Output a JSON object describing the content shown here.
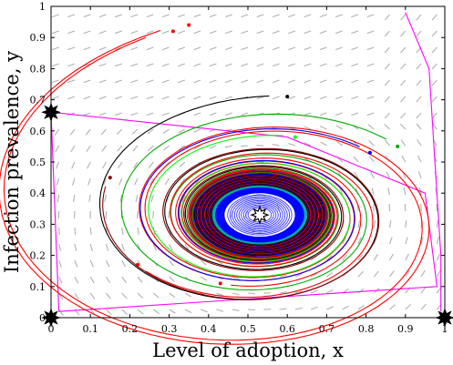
{
  "chart_data": {
    "type": "line",
    "subtype": "phase-portrait",
    "xlabel": "Level of adoption, x",
    "ylabel": "Infection prevalence, y",
    "xlim": [
      0,
      1
    ],
    "ylim": [
      0,
      1
    ],
    "xticks": [
      "0",
      "0.1",
      "0.2",
      "0.3",
      "0.4",
      "0.5",
      "0.6",
      "0.7",
      "0.8",
      "0.9",
      "1"
    ],
    "yticks": [
      "0",
      "0.1",
      "0.2",
      "0.3",
      "0.4",
      "0.5",
      "0.6",
      "0.7",
      "0.8",
      "0.9",
      "1"
    ],
    "grid": false,
    "legend": "none",
    "vector_field": {
      "color": "#b0b0b0",
      "rows": 19,
      "cols": 25
    },
    "equilibria": [
      {
        "x": 0.0,
        "y": 0.0,
        "style": "filled"
      },
      {
        "x": 1.0,
        "y": 0.0,
        "style": "filled"
      },
      {
        "x": 0.0,
        "y": 0.66,
        "style": "filled"
      },
      {
        "x": 0.53,
        "y": 0.33,
        "style": "hollow"
      }
    ],
    "limit_cycle": {
      "center": [
        0.53,
        0.33
      ],
      "rx": 0.165,
      "ry": 0.13,
      "tilt": 0.12
    },
    "series": [
      {
        "color": "#ff00ff",
        "points": [
          [
            0.9,
            0.98
          ],
          [
            0.96,
            0.8
          ],
          [
            0.99,
            0.2
          ],
          [
            0.99,
            0.02
          ]
        ]
      },
      {
        "color": "#ff00ff",
        "points": [
          [
            0.0,
            0.66
          ],
          [
            0.6,
            0.58
          ],
          [
            0.95,
            0.4
          ],
          [
            0.98,
            0.1
          ],
          [
            0.02,
            0.02
          ],
          [
            0.0,
            0.66
          ]
        ]
      },
      {
        "color": "#ff0000",
        "start": [
          0.35,
          0.94
        ],
        "r0": 0.54,
        "turns": 3.2
      },
      {
        "color": "#ff0000",
        "start": [
          0.31,
          0.92
        ],
        "r0": 0.52,
        "turns": 3.0
      },
      {
        "color": "#000000",
        "start": [
          0.6,
          0.71
        ],
        "r0": 0.47,
        "turns": 3.5
      },
      {
        "color": "#00ff00",
        "start": [
          0.62,
          0.58
        ],
        "r0": 0.37,
        "turns": 3.3
      },
      {
        "color": "#0000ff",
        "start": [
          0.81,
          0.53
        ],
        "r0": 0.34,
        "turns": 3.4
      },
      {
        "color": "#00aa00",
        "start": [
          0.88,
          0.55
        ],
        "r0": 0.4,
        "turns": 3.6
      },
      {
        "color": "#ff0000",
        "start": [
          0.22,
          0.17
        ],
        "r0": 0.3,
        "turns": 3.0
      },
      {
        "color": "#ff0000",
        "start": [
          0.43,
          0.11
        ],
        "r0": 0.33,
        "turns": 3.2
      },
      {
        "color": "#8b0000",
        "start": [
          0.15,
          0.45
        ],
        "r0": 0.44,
        "turns": 3.8
      },
      {
        "color": "#00aaaa",
        "start": [
          0.45,
          0.4
        ],
        "r0": 0.08,
        "turns": 2.0
      },
      {
        "color": "#0000ff",
        "start": [
          0.62,
          0.26
        ],
        "r0": 0.05,
        "turns": 2.5
      }
    ]
  }
}
